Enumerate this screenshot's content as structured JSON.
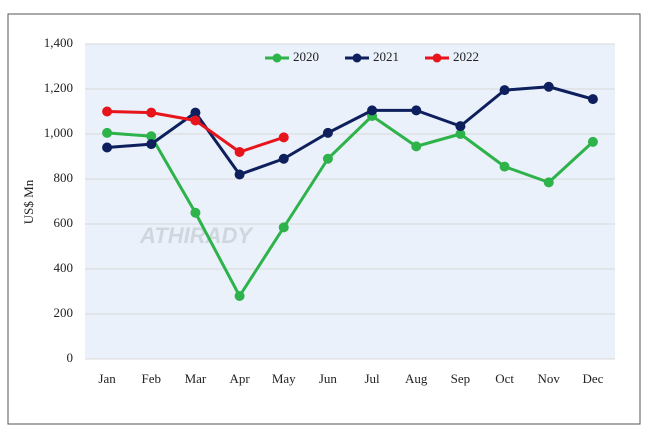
{
  "chart_data": {
    "type": "line",
    "y_label": "US$ Mn",
    "watermark": "ATHIRADY",
    "categories": [
      "Jan",
      "Feb",
      "Mar",
      "Apr",
      "May",
      "Jun",
      "Jul",
      "Aug",
      "Sep",
      "Oct",
      "Nov",
      "Dec"
    ],
    "series": [
      {
        "name": "2020",
        "color": "#2db34a",
        "values": [
          1005,
          990,
          650,
          280,
          585,
          890,
          1080,
          945,
          1000,
          855,
          785,
          965
        ]
      },
      {
        "name": "2021",
        "color": "#0d1f5c",
        "values": [
          940,
          955,
          1095,
          820,
          890,
          1005,
          1105,
          1105,
          1035,
          1195,
          1210,
          1155
        ]
      },
      {
        "name": "2022",
        "color": "#e8141c",
        "values": [
          1100,
          1095,
          1060,
          920,
          985,
          null,
          null,
          null,
          null,
          null,
          null,
          null
        ]
      }
    ],
    "ylim": [
      0,
      1400
    ],
    "yticks": [
      0,
      200,
      400,
      600,
      800,
      {
        "value": 1000,
        "label": "1,000"
      },
      {
        "value": 1200,
        "label": "1,200"
      },
      {
        "value": 1400,
        "label": "1,400"
      }
    ],
    "grid": true,
    "legend_position": "top"
  }
}
